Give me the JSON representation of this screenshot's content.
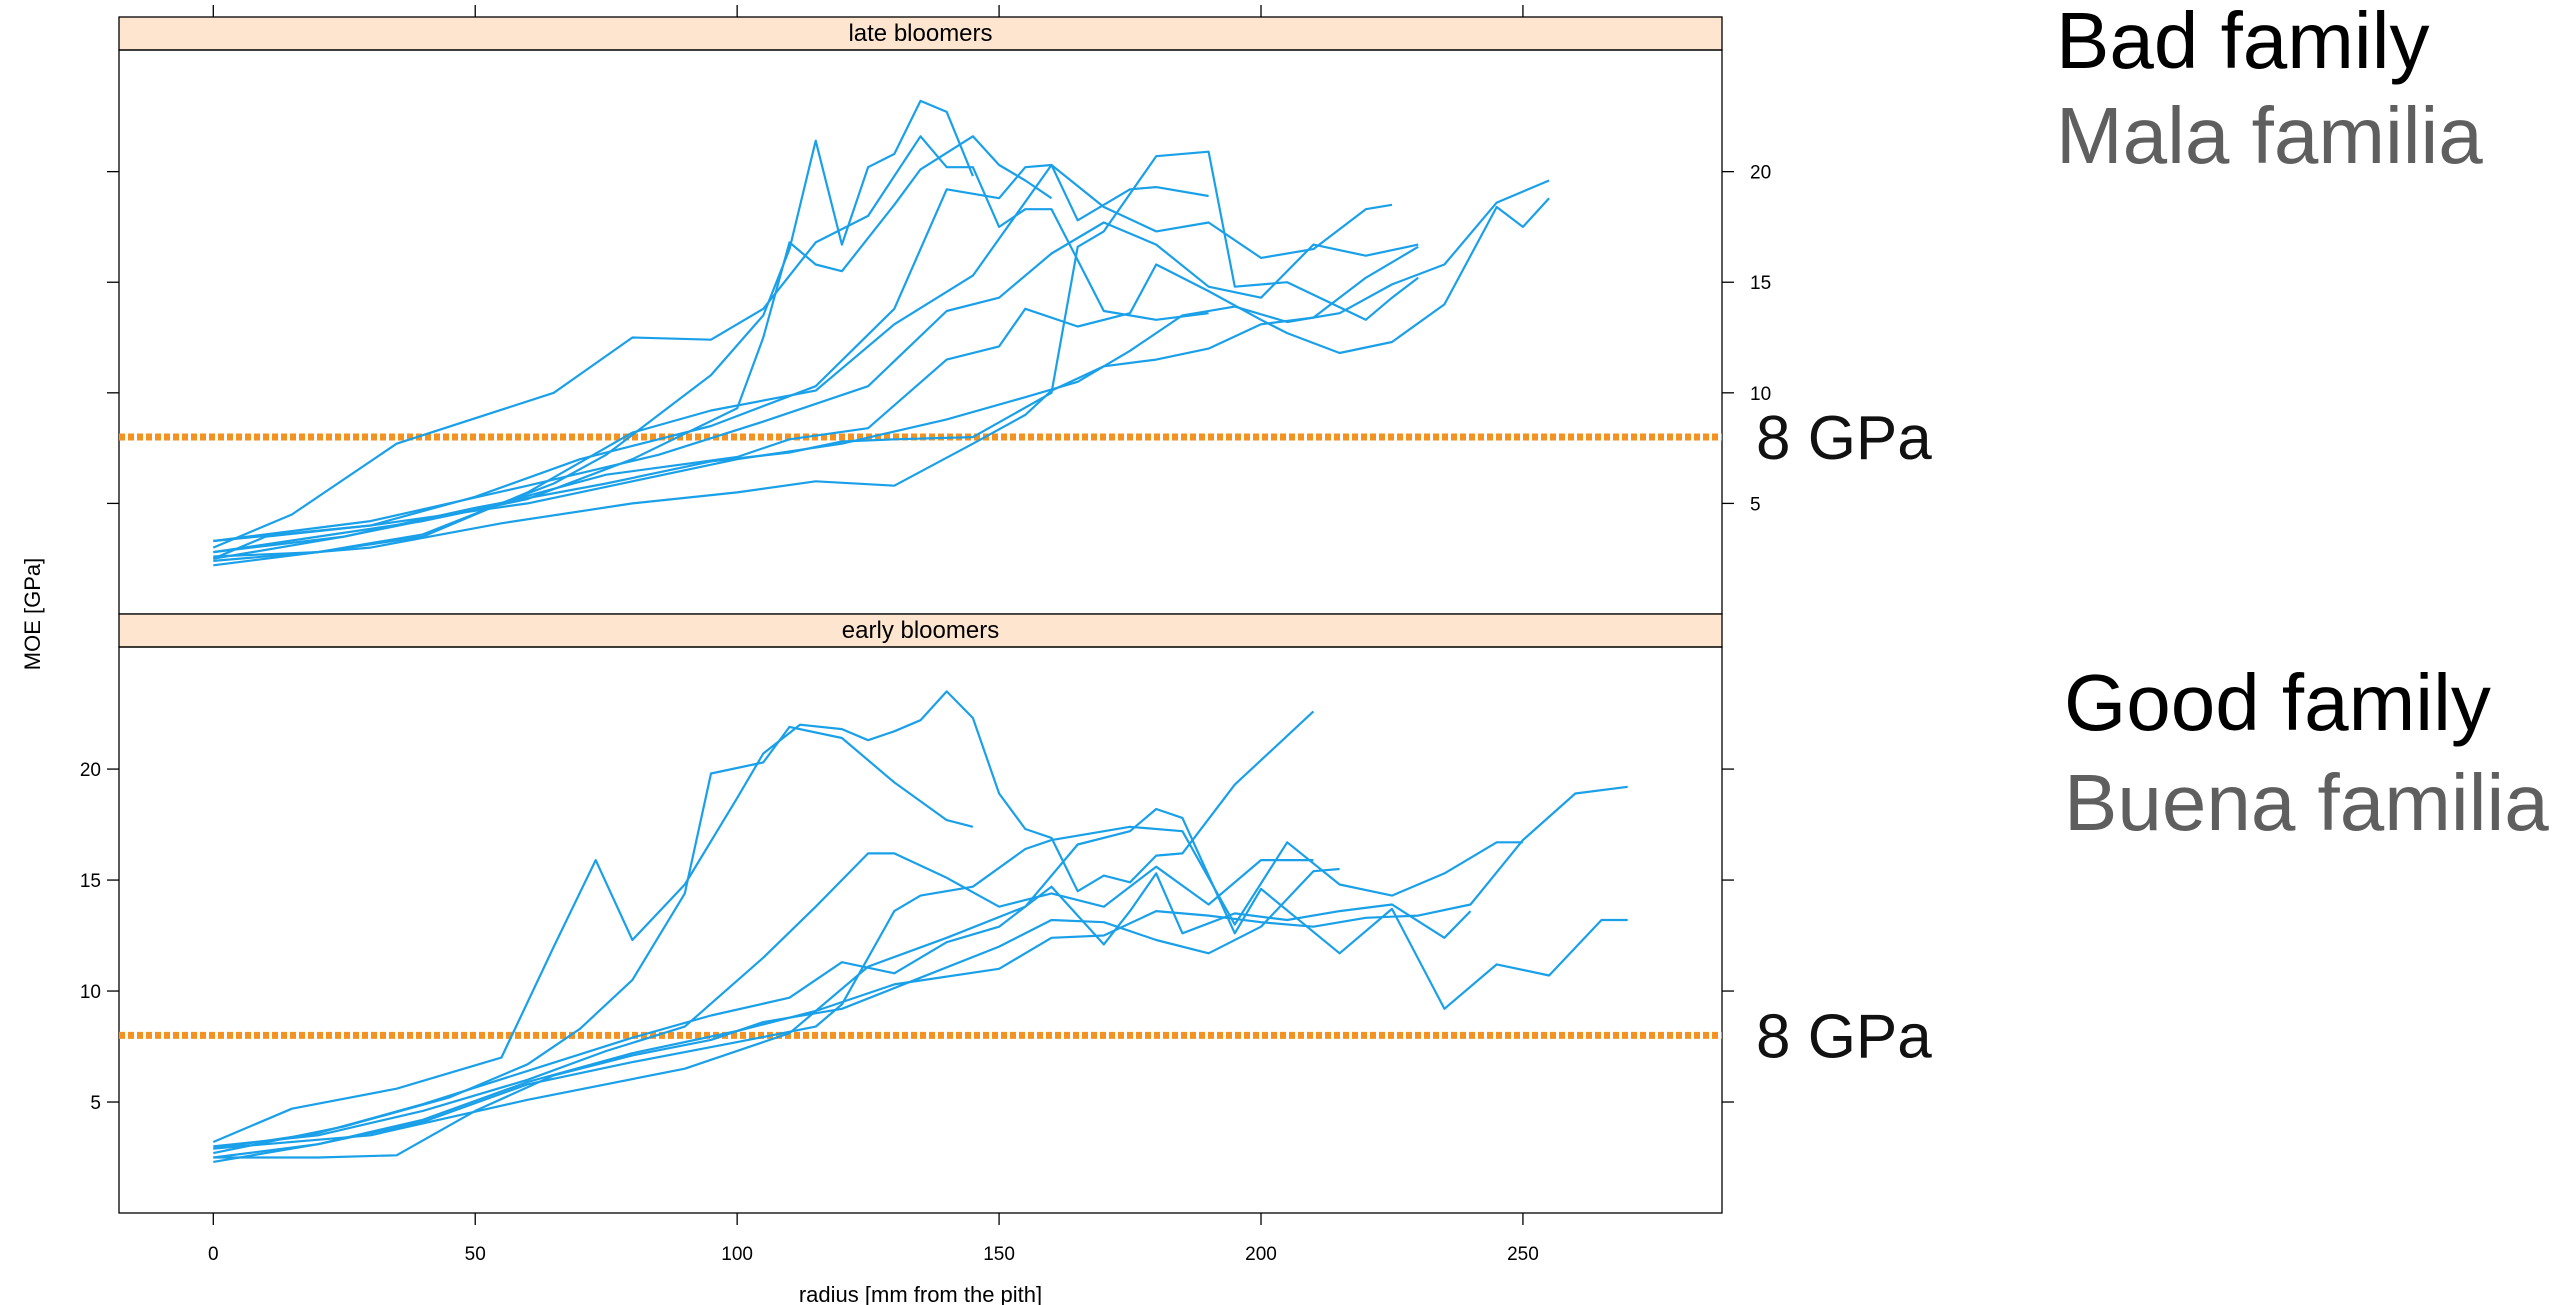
{
  "chart_data": {
    "type": "line",
    "xlabel": "radius [mm from the pith]",
    "ylabel": "MOE [GPa]",
    "xlim": [
      -18,
      288
    ],
    "ylim": [
      0,
      25.5
    ],
    "x_ticks": [
      0,
      50,
      100,
      150,
      200,
      250
    ],
    "y_ticks": [
      5,
      10,
      15,
      20
    ],
    "reference_line": {
      "y": 8,
      "label": "8 GPa",
      "color": "#f39221"
    },
    "line_color": "#1aa0e8",
    "panels": [
      {
        "strip": "late bloomers",
        "note": "Bad family",
        "note_secondary": "Mala familia",
        "series": [
          {
            "x": [
              0,
              15,
              35,
              65,
              80,
              95,
              105,
              115,
              125,
              135,
              140,
              145,
              150,
              155,
              160,
              165,
              170,
              180,
              190
            ],
            "y": [
              3,
              4.5,
              7.7,
              10,
              12.5,
              12.4,
              13.8,
              16.8,
              18,
              21.6,
              20.2,
              20.2,
              17.5,
              18.3,
              18.3,
              16,
              13.7,
              13.3,
              13.6
            ]
          },
          {
            "x": [
              0,
              20,
              40,
              60,
              80,
              100,
              105,
              110,
              115,
              120,
              130,
              135,
              145,
              150,
              155,
              160
            ],
            "y": [
              2.8,
              3.5,
              4.2,
              5.2,
              7,
              9.3,
              12.5,
              16.8,
              15.8,
              15.5,
              18.5,
              20.1,
              21.6,
              20.3,
              19.6,
              18.8
            ]
          },
          {
            "x": [
              0,
              20,
              40,
              55,
              65,
              75,
              85,
              95,
              105,
              110,
              115,
              120,
              125,
              130,
              135,
              140,
              145
            ],
            "y": [
              2.6,
              2.8,
              3.6,
              5,
              5.9,
              7.2,
              9,
              10.8,
              13.5,
              16.5,
              21.4,
              16.7,
              20.2,
              20.8,
              23.2,
              22.7,
              19.8
            ]
          },
          {
            "x": [
              0,
              10,
              30,
              50,
              70,
              95,
              115,
              130,
              140,
              150,
              155,
              160,
              165,
              175,
              180,
              190
            ],
            "y": [
              2.5,
              3.5,
              4,
              5.3,
              7,
              8.5,
              10.3,
              13.8,
              19.2,
              18.8,
              20.2,
              20.3,
              17.8,
              19.2,
              19.3,
              18.9
            ]
          },
          {
            "x": [
              0,
              20,
              40,
              60,
              80,
              95,
              115,
              130,
              145,
              160,
              170,
              180,
              190,
              200,
              210,
              220,
              225
            ],
            "y": [
              2.2,
              2.8,
              3.5,
              5.5,
              8.2,
              9.2,
              10.1,
              13.1,
              15.3,
              20.3,
              18.4,
              17.3,
              17.7,
              16.1,
              16.5,
              18.3,
              18.5
            ]
          },
          {
            "x": [
              0,
              30,
              60,
              85,
              105,
              125,
              140,
              150,
              160,
              170,
              180,
              190,
              200,
              210,
              220,
              230
            ],
            "y": [
              3.3,
              4.2,
              5.8,
              7.2,
              8.7,
              10.3,
              13.7,
              14.3,
              16.3,
              17.7,
              16.7,
              14.8,
              14.3,
              16.7,
              16.2,
              16.7
            ]
          },
          {
            "x": [
              0,
              25,
              50,
              75,
              95,
              110,
              120,
              130,
              145,
              160,
              165,
              170,
              180,
              190,
              195,
              205,
              220,
              225,
              230
            ],
            "y": [
              2.8,
              3.5,
              4.8,
              5.9,
              6.9,
              7.3,
              7.8,
              7.9,
              8,
              10,
              16.6,
              17.3,
              20.7,
              20.9,
              14.8,
              15,
              13.3,
              14.3,
              15.2
            ]
          },
          {
            "x": [
              0,
              25,
              50,
              75,
              100,
              110,
              125,
              140,
              150,
              155,
              165,
              175,
              180,
              190,
              200,
              205,
              215,
              225,
              235,
              245,
              250,
              255
            ],
            "y": [
              2.5,
              3.5,
              4.7,
              6.3,
              7.1,
              7.9,
              8.4,
              11.5,
              12.1,
              13.8,
              13,
              13.6,
              15.8,
              14.6,
              13.3,
              12.7,
              11.8,
              12.3,
              14,
              18.4,
              17.5,
              18.8
            ]
          },
          {
            "x": [
              0,
              30,
              55,
              80,
              100,
              115,
              130,
              145,
              155,
              160,
              170,
              180,
              190,
              200,
              210,
              220,
              230
            ],
            "y": [
              2.4,
              3,
              4.1,
              5,
              5.5,
              6,
              5.8,
              7.7,
              9,
              10.1,
              11.2,
              11.5,
              12,
              13.1,
              13.4,
              15.2,
              16.6
            ]
          },
          {
            "x": [
              0,
              30,
              60,
              80,
              100,
              120,
              140,
              155,
              165,
              175,
              185,
              195,
              205,
              215,
              225,
              235,
              245,
              255
            ],
            "y": [
              3.3,
              4,
              5,
              6,
              7,
              7.7,
              8.8,
              9.8,
              10.5,
              11.9,
              13.5,
              13.9,
              13.2,
              13.6,
              14.9,
              15.8,
              18.6,
              19.6
            ]
          }
        ]
      },
      {
        "strip": "early bloomers",
        "note": "Good family",
        "note_secondary": "Buena familia",
        "series": [
          {
            "x": [
              0,
              15,
              35,
              55,
              65,
              73,
              80,
              90,
              100,
              105,
              112,
              120,
              125,
              130,
              135,
              140,
              145,
              150,
              155,
              160,
              165,
              170,
              175,
              180,
              185,
              195,
              210
            ],
            "y": [
              3.2,
              4.7,
              5.6,
              7,
              12,
              15.9,
              12.3,
              14.8,
              18.7,
              20.7,
              22,
              21.8,
              21.3,
              21.7,
              22.2,
              23.5,
              22.3,
              18.9,
              17.3,
              16.9,
              14.5,
              15.2,
              14.9,
              16.1,
              16.2,
              19.3,
              22.6
            ]
          },
          {
            "x": [
              0,
              25,
              45,
              60,
              70,
              80,
              90,
              95,
              105,
              110,
              120,
              130,
              140,
              145
            ],
            "y": [
              2.7,
              3.9,
              5.2,
              6.7,
              8.3,
              10.5,
              14.4,
              19.8,
              20.3,
              21.9,
              21.4,
              19.4,
              17.7,
              17.4
            ]
          },
          {
            "x": [
              0,
              20,
              40,
              60,
              75,
              90,
              105,
              115,
              125,
              130,
              140,
              150,
              160,
              170,
              180,
              190,
              200,
              210
            ],
            "y": [
              3,
              3.5,
              4.6,
              6,
              7.3,
              8.4,
              11.5,
              13.8,
              16.2,
              16.2,
              15.1,
              13.8,
              14.4,
              13.8,
              15.6,
              13.9,
              15.9,
              15.9
            ]
          },
          {
            "x": [
              0,
              20,
              40,
              60,
              80,
              100,
              115,
              120,
              130,
              135,
              145,
              155,
              160,
              175,
              185,
              195,
              205,
              215,
              225,
              235,
              245,
              250
            ],
            "y": [
              2.5,
              3.1,
              4.1,
              5.8,
              6.8,
              7.7,
              8.4,
              9.4,
              13.6,
              14.3,
              14.7,
              16.4,
              16.8,
              17.4,
              17.2,
              13,
              16.7,
              14.8,
              14.3,
              15.3,
              16.7,
              16.7
            ]
          },
          {
            "x": [
              0,
              20,
              40,
              60,
              80,
              95,
              110,
              120,
              130,
              140,
              150,
              160,
              170,
              175,
              180,
              185,
              195,
              205,
              215,
              225,
              235,
              240
            ],
            "y": [
              2.9,
              3.6,
              4.9,
              6.4,
              7.9,
              8.9,
              9.7,
              11.3,
              10.8,
              12.2,
              12.9,
              14.7,
              12.1,
              13.6,
              15.3,
              12.6,
              13.5,
              13.2,
              13.6,
              13.9,
              12.4,
              13.6
            ]
          },
          {
            "x": [
              0,
              30,
              60,
              90,
              110,
              125,
              140,
              155,
              165,
              175,
              180,
              185,
              195,
              200,
              215,
              225,
              235,
              245,
              255,
              265,
              270
            ],
            "y": [
              2.9,
              3.5,
              5.1,
              6.5,
              8.1,
              11.1,
              12.4,
              13.8,
              16.6,
              17.2,
              18.2,
              17.8,
              12.6,
              14.6,
              11.7,
              13.7,
              9.2,
              11.2,
              10.7,
              13.2,
              13.2
            ]
          },
          {
            "x": [
              0,
              20,
              40,
              60,
              80,
              100,
              115,
              130,
              150,
              160,
              170,
              180,
              190,
              200,
              210,
              220,
              230,
              240,
              250,
              260,
              270
            ],
            "y": [
              2.3,
              3.1,
              4.2,
              5.9,
              7.2,
              8.2,
              9.1,
              10.3,
              11,
              12.4,
              12.5,
              13.6,
              13.4,
              13.1,
              12.9,
              13.3,
              13.4,
              13.9,
              16.8,
              18.9,
              19.2
            ]
          },
          {
            "x": [
              0,
              20,
              35,
              50,
              65,
              80,
              95,
              105,
              120,
              135,
              150,
              160,
              170,
              180,
              190,
              200,
              210,
              215
            ],
            "y": [
              2.5,
              2.5,
              2.6,
              4.6,
              6.2,
              7.1,
              7.8,
              8.6,
              9.2,
              10.6,
              12,
              13.2,
              13.1,
              12.3,
              11.7,
              12.9,
              15.4,
              15.5
            ]
          }
        ]
      }
    ]
  }
}
